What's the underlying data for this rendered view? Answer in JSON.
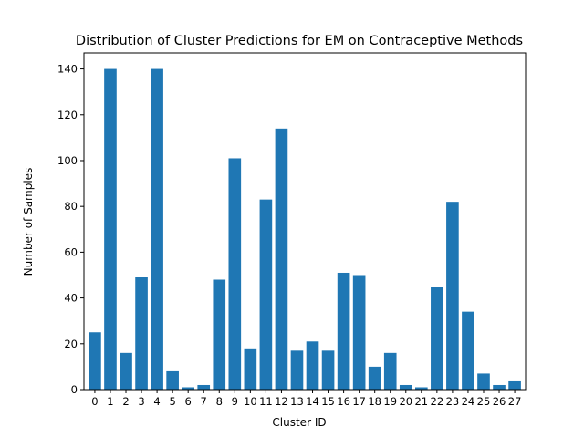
{
  "chart_data": {
    "type": "bar",
    "title": "Distribution of Cluster Predictions for EM on Contraceptive Methods",
    "xlabel": "Cluster ID",
    "ylabel": "Number of Samples",
    "categories": [
      "0",
      "1",
      "2",
      "3",
      "4",
      "5",
      "6",
      "7",
      "8",
      "9",
      "10",
      "11",
      "12",
      "13",
      "14",
      "15",
      "16",
      "17",
      "18",
      "19",
      "20",
      "21",
      "22",
      "23",
      "24",
      "25",
      "26",
      "27"
    ],
    "values": [
      25,
      140,
      16,
      49,
      140,
      8,
      1,
      2,
      48,
      101,
      18,
      83,
      114,
      17,
      21,
      17,
      51,
      50,
      10,
      16,
      2,
      1,
      45,
      82,
      34,
      7,
      2,
      4
    ],
    "ylim": [
      0,
      147
    ],
    "yticks": [
      0,
      20,
      40,
      60,
      80,
      100,
      120,
      140
    ],
    "bar_color": "#1f77b4",
    "grid": false
  }
}
